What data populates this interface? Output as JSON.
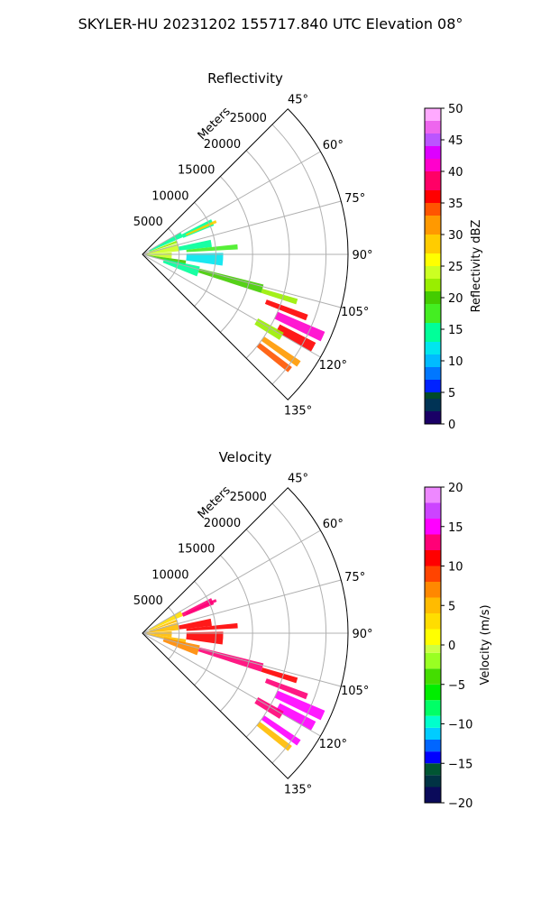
{
  "figure": {
    "title": "SKYLER-HU  20231202  155717.840 UTC Elevation 08°"
  },
  "chart_data": [
    {
      "type": "polar-sector",
      "title": "Reflectivity",
      "radial_axis_label": "Meters",
      "radial_ticks": [
        5000,
        10000,
        15000,
        20000,
        25000
      ],
      "radial_tick_labels": [
        "5000",
        "10000",
        "15000",
        "20000",
        "25000"
      ],
      "rmax": 28000,
      "azimuth_range": [
        45,
        135
      ],
      "azimuth_ticks": [
        45,
        60,
        75,
        90,
        105,
        120,
        135
      ],
      "azimuth_tick_labels": [
        "45°",
        "60°",
        "75°",
        "90°",
        "105°",
        "120°",
        "135°"
      ],
      "grid": true,
      "colorbar": {
        "label": "Reflectivity dBZ",
        "range": [
          0,
          50
        ],
        "ticks": [
          0,
          5,
          10,
          15,
          20,
          25,
          30,
          35,
          40,
          45,
          50
        ],
        "tick_labels": [
          "0",
          "5",
          "10",
          "15",
          "20",
          "25",
          "30",
          "35",
          "40",
          "45",
          "50"
        ]
      },
      "echoes": [
        {
          "az": [
            60,
            67
          ],
          "r": [
            1000,
            6000
          ],
          "value": 14
        },
        {
          "az": [
            63,
            68
          ],
          "r": [
            6000,
            10500
          ],
          "value": 13
        },
        {
          "az": [
            65,
            67
          ],
          "r": [
            6500,
            11000
          ],
          "value": 28
        },
        {
          "az": [
            68,
            72
          ],
          "r": [
            1000,
            5000
          ],
          "value": 22
        },
        {
          "az": [
            73,
            85
          ],
          "r": [
            500,
            5000
          ],
          "value": 23
        },
        {
          "az": [
            78,
            84
          ],
          "r": [
            5000,
            9500
          ],
          "value": 14
        },
        {
          "az": [
            84,
            87
          ],
          "r": [
            6000,
            13000
          ],
          "value": 18
        },
        {
          "az": [
            86,
            98
          ],
          "r": [
            500,
            4000
          ],
          "value": 24
        },
        {
          "az": [
            89,
            98
          ],
          "r": [
            6000,
            11000
          ],
          "value": 12
        },
        {
          "az": [
            98,
            104
          ],
          "r": [
            500,
            6000
          ],
          "value": 20
        },
        {
          "az": [
            102,
            112
          ],
          "r": [
            3000,
            8000
          ],
          "value": 14
        },
        {
          "az": [
            104,
            108
          ],
          "r": [
            8000,
            17000
          ],
          "value": 20
        },
        {
          "az": [
            106,
            108
          ],
          "r": [
            17000,
            22000
          ],
          "value": 22
        },
        {
          "az": [
            110,
            112
          ],
          "r": [
            18000,
            24000
          ],
          "value": 35
        },
        {
          "az": [
            113,
            116
          ],
          "r": [
            20000,
            27000
          ],
          "value": 40
        },
        {
          "az": [
            117,
            120
          ],
          "r": [
            21000,
            26500
          ],
          "value": 36
        },
        {
          "az": [
            119,
            122
          ],
          "r": [
            18000,
            22000
          ],
          "value": 22
        },
        {
          "az": [
            124,
            126
          ],
          "r": [
            20000,
            26000
          ],
          "value": 30
        },
        {
          "az": [
            127,
            129
          ],
          "r": [
            20000,
            25500
          ],
          "value": 33
        }
      ]
    },
    {
      "type": "polar-sector",
      "title": "Velocity",
      "radial_axis_label": "Meters",
      "radial_ticks": [
        5000,
        10000,
        15000,
        20000,
        25000
      ],
      "radial_tick_labels": [
        "5000",
        "10000",
        "15000",
        "20000",
        "25000"
      ],
      "rmax": 28000,
      "azimuth_range": [
        45,
        135
      ],
      "azimuth_ticks": [
        45,
        60,
        75,
        90,
        105,
        120,
        135
      ],
      "azimuth_tick_labels": [
        "45°",
        "60°",
        "75°",
        "90°",
        "105°",
        "120°",
        "135°"
      ],
      "grid": true,
      "colorbar": {
        "label": "Velocity (m/s)",
        "range": [
          -20,
          20
        ],
        "ticks": [
          -20,
          -15,
          -10,
          -5,
          0,
          5,
          10,
          15,
          20
        ],
        "tick_labels": [
          "−20",
          "−15",
          "−10",
          "−5",
          "0",
          "5",
          "10",
          "15",
          "20"
        ]
      },
      "echoes": [
        {
          "az": [
            60,
            67
          ],
          "r": [
            1000,
            6000
          ],
          "value": 3
        },
        {
          "az": [
            63,
            68
          ],
          "r": [
            6000,
            10500
          ],
          "value": 13
        },
        {
          "az": [
            65,
            67
          ],
          "r": [
            6500,
            11000
          ],
          "value": 12
        },
        {
          "az": [
            68,
            72
          ],
          "r": [
            1000,
            5000
          ],
          "value": 4
        },
        {
          "az": [
            73,
            85
          ],
          "r": [
            500,
            5000
          ],
          "value": 5
        },
        {
          "az": [
            78,
            84
          ],
          "r": [
            5000,
            9500
          ],
          "value": 10
        },
        {
          "az": [
            84,
            87
          ],
          "r": [
            6000,
            13000
          ],
          "value": 11
        },
        {
          "az": [
            86,
            98
          ],
          "r": [
            500,
            4000
          ],
          "value": 4
        },
        {
          "az": [
            89,
            98
          ],
          "r": [
            6000,
            11000
          ],
          "value": 10
        },
        {
          "az": [
            98,
            104
          ],
          "r": [
            500,
            6000
          ],
          "value": 5
        },
        {
          "az": [
            102,
            112
          ],
          "r": [
            3000,
            8000
          ],
          "value": 7
        },
        {
          "az": [
            104,
            108
          ],
          "r": [
            8000,
            17000
          ],
          "value": 12
        },
        {
          "az": [
            106,
            108
          ],
          "r": [
            17000,
            22000
          ],
          "value": 11
        },
        {
          "az": [
            110,
            112
          ],
          "r": [
            18000,
            24000
          ],
          "value": 13
        },
        {
          "az": [
            113,
            116
          ],
          "r": [
            20000,
            27000
          ],
          "value": 14
        },
        {
          "az": [
            117,
            120
          ],
          "r": [
            21000,
            26500
          ],
          "value": 15
        },
        {
          "az": [
            119,
            122
          ],
          "r": [
            18000,
            22000
          ],
          "value": 12
        },
        {
          "az": [
            124,
            126
          ],
          "r": [
            20000,
            26000
          ],
          "value": 14
        },
        {
          "az": [
            127,
            129
          ],
          "r": [
            20000,
            25500
          ],
          "value": 5
        }
      ]
    }
  ]
}
